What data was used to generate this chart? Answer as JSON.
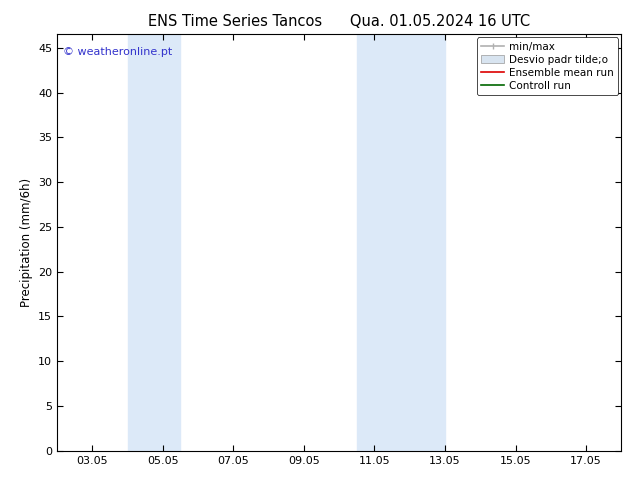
{
  "title": "ENS Time Series Tancos      Qua. 01.05.2024 16 UTC",
  "ylabel": "Precipitation (mm/6h)",
  "watermark": "© weatheronline.pt",
  "watermark_color": "#3333cc",
  "background_color": "#ffffff",
  "plot_bg_color": "#ffffff",
  "ylim": [
    0,
    46.5
  ],
  "yticks": [
    0,
    5,
    10,
    15,
    20,
    25,
    30,
    35,
    40,
    45
  ],
  "xtick_labels": [
    "03.05",
    "05.05",
    "07.05",
    "09.05",
    "11.05",
    "13.05",
    "15.05",
    "17.05"
  ],
  "xtick_positions": [
    3,
    5,
    7,
    9,
    11,
    13,
    15,
    17
  ],
  "xlim": [
    2,
    18
  ],
  "shade_bands": [
    {
      "xmin": 4.0,
      "xmax": 5.5
    },
    {
      "xmin": 10.5,
      "xmax": 13.0
    }
  ],
  "shade_color": "#dce9f8",
  "legend_items": [
    {
      "label": "min/max",
      "color": "#b0b0b0",
      "lw": 1.2
    },
    {
      "label": "Desvio padr tilde;o",
      "color": "#d8e4f0",
      "lw": 8
    },
    {
      "label": "Ensemble mean run",
      "color": "#dd0000",
      "lw": 1.2
    },
    {
      "label": "Controll run",
      "color": "#006600",
      "lw": 1.2
    }
  ],
  "title_fontsize": 10.5,
  "axis_label_fontsize": 8.5,
  "tick_fontsize": 8,
  "legend_fontsize": 7.5
}
